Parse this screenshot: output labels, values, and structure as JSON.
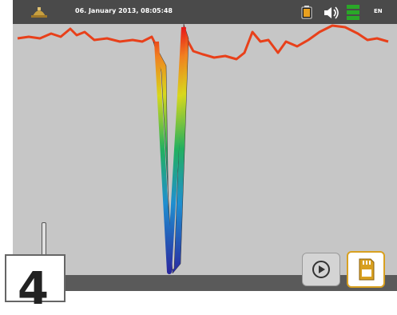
{
  "statusbar": {
    "logo_icon": "helmet-logo-icon",
    "datetime": "06. January 2013, 08:05:48",
    "battery_icon": "battery-icon",
    "volume_icon": "speaker-volume-icon",
    "signal_icon": "signal-level-icon",
    "language": "EN"
  },
  "plot": {
    "color_scale": [
      "#2a2aa0",
      "#1f8fd0",
      "#22b060",
      "#d8d81c",
      "#f08020",
      "#e81818"
    ],
    "legend_icon": "depth-scale-icon"
  },
  "controls": {
    "play_icon": "play-circle-icon",
    "save_icon": "sd-card-save-icon"
  },
  "overlay": {
    "step_number": "4"
  }
}
